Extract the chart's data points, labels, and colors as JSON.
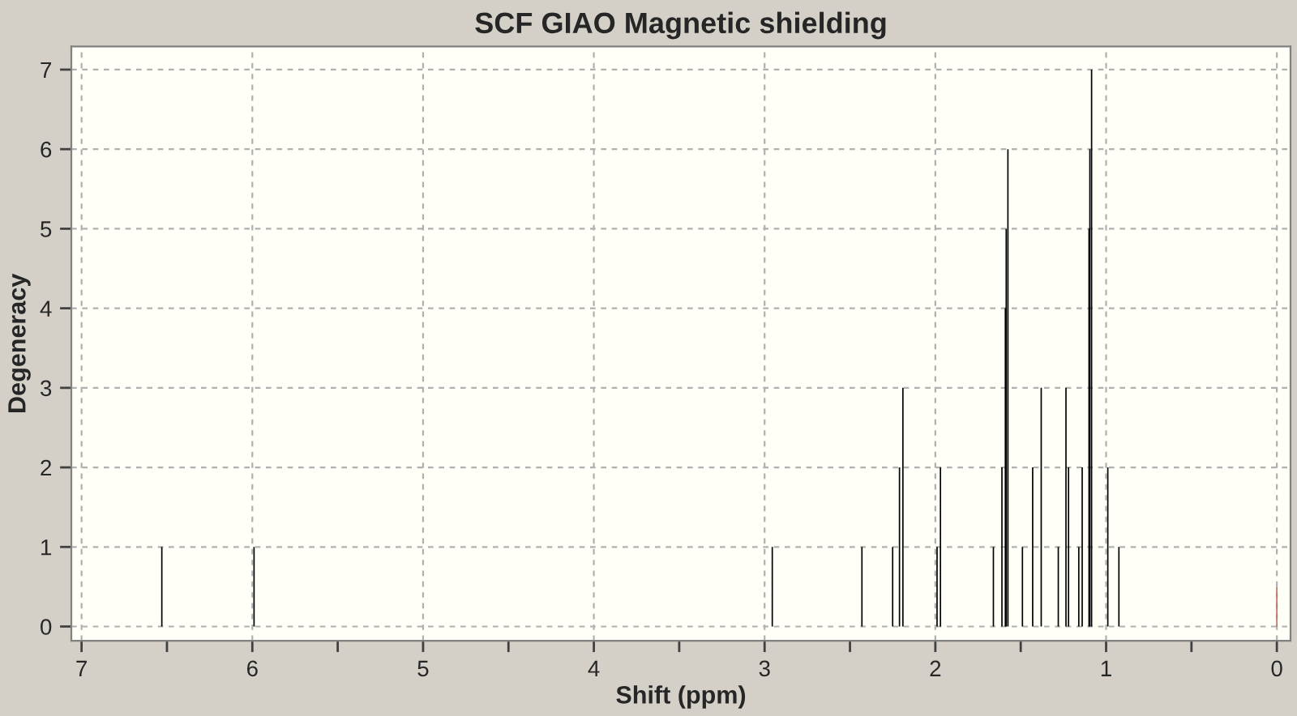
{
  "chart_data": {
    "type": "bar",
    "title": "SCF GIAO Magnetic shielding",
    "xlabel": "Shift (ppm)",
    "ylabel": "Degeneracy",
    "x": [
      6.53,
      5.99,
      2.955,
      2.43,
      2.25,
      2.21,
      2.19,
      1.99,
      1.97,
      1.66,
      1.61,
      1.59,
      1.585,
      1.575,
      1.49,
      1.43,
      1.38,
      1.28,
      1.235,
      1.22,
      1.16,
      1.14,
      1.1,
      1.095,
      1.085,
      0.99,
      0.925,
      0.0
    ],
    "values": [
      1,
      1,
      1,
      1,
      1,
      2,
      3,
      1,
      2,
      1,
      2,
      4,
      5,
      6,
      1,
      2,
      3,
      1,
      3,
      2,
      1,
      2,
      5,
      6,
      7,
      2,
      1,
      0.5
    ],
    "colors": [
      "#000000",
      "#000000",
      "#000000",
      "#000000",
      "#000000",
      "#000000",
      "#000000",
      "#000000",
      "#000000",
      "#000000",
      "#000000",
      "#000000",
      "#000000",
      "#000000",
      "#000000",
      "#000000",
      "#000000",
      "#000000",
      "#000000",
      "#000000",
      "#000000",
      "#000000",
      "#000000",
      "#000000",
      "#000000",
      "#000000",
      "#000000",
      "#c87060"
    ],
    "xlim": [
      7.06,
      -0.08
    ],
    "ylim": [
      -0.18,
      7.29
    ],
    "xticks": [
      7,
      {
        "value": 6.5,
        "label": null
      },
      6,
      {
        "value": 5.5,
        "label": null
      },
      5,
      {
        "value": 4.5,
        "label": null
      },
      4,
      {
        "value": 3.5,
        "label": null
      },
      3,
      {
        "value": 2.5,
        "label": null
      },
      2,
      {
        "value": 1.5,
        "label": null
      },
      1,
      {
        "value": 0.5,
        "label": null
      },
      0
    ],
    "yticks": [
      0,
      1,
      2,
      3,
      4,
      5,
      6,
      7
    ],
    "grid": true
  }
}
